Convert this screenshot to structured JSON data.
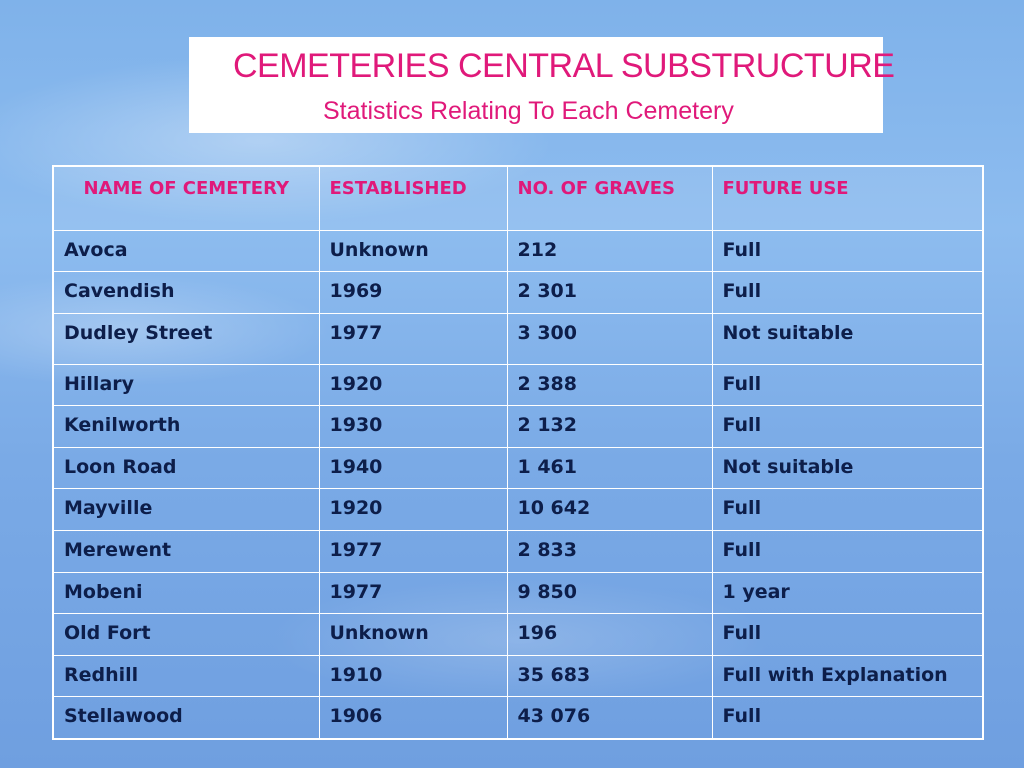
{
  "header": {
    "title": "CEMETERIES CENTRAL SUBSTRUCTURE",
    "subtitle": "Statistics Relating To Each Cemetery"
  },
  "colors": {
    "heading": "#e0197a",
    "text": "#0d1e4a",
    "background": "#7fb2ea"
  },
  "table": {
    "columns": [
      "NAME OF CEMETERY",
      "ESTABLISHED",
      "NO. OF GRAVES",
      "FUTURE USE"
    ],
    "rows": [
      [
        "Avoca",
        "Unknown",
        "212",
        "Full"
      ],
      [
        "Cavendish",
        "1969",
        "2 301",
        "Full"
      ],
      [
        "Dudley Street",
        "1977",
        "3 300",
        "Not suitable"
      ],
      [
        "Hillary",
        "1920",
        "2 388",
        "Full"
      ],
      [
        "Kenilworth",
        "1930",
        "2 132",
        "Full"
      ],
      [
        "Loon Road",
        "1940",
        "1 461",
        "Not suitable"
      ],
      [
        "Mayville",
        "1920",
        "10 642",
        "Full"
      ],
      [
        "Merewent",
        "1977",
        "2 833",
        "Full"
      ],
      [
        "Mobeni",
        "1977",
        "9 850",
        "1 year"
      ],
      [
        "Old Fort",
        "Unknown",
        "196",
        "Full"
      ],
      [
        "Redhill",
        "1910",
        "35 683",
        "Full with Explanation"
      ],
      [
        "Stellawood",
        "1906",
        "43 076",
        "Full"
      ]
    ]
  }
}
